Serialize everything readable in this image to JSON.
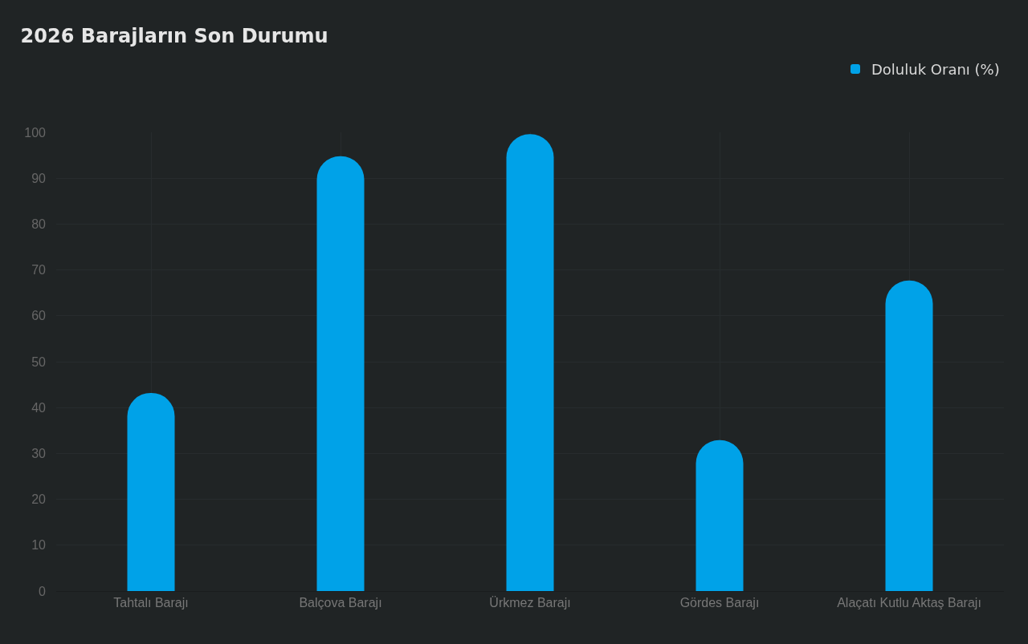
{
  "chart_data": {
    "type": "bar",
    "title": "2026 Barajların Son Durumu",
    "categories": [
      "Tahtalı Barajı",
      "Balçova Barajı",
      "Ürkmez Barajı",
      "Gördes Barajı",
      "Alaçatı Kutlu Aktaş Barajı"
    ],
    "series": [
      {
        "name": "Doluluk Oranı (%)",
        "color": "#00a2e8",
        "values": [
          43.2,
          94.8,
          99.6,
          32.9,
          67.7
        ]
      }
    ],
    "ylim": [
      0,
      100
    ],
    "yticks": [
      0,
      10,
      20,
      30,
      40,
      50,
      60,
      70,
      80,
      90,
      100
    ],
    "grid": true,
    "legend": "top right"
  }
}
